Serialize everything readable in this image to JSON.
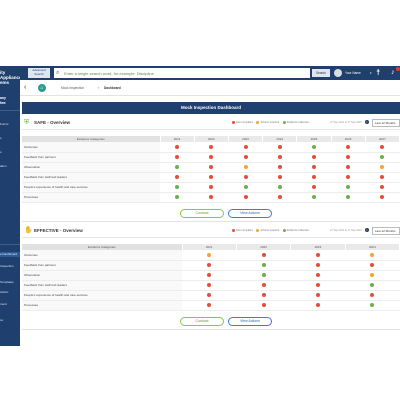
{
  "app": {
    "logo_text": "ity\nAppliance\nems",
    "user_short": "any\nfwe"
  },
  "sidebar": {
    "items": [
      {
        "label": "e Dashboard",
        "active": true
      },
      {
        "label": "Inspection",
        "active": false
      },
      {
        "label": "Templates",
        "active": false
      },
      {
        "label": "Action",
        "active": false
      },
      {
        "label": "ment",
        "active": false
      },
      {
        "label": "ce",
        "active": false
      }
    ],
    "upper_items": [
      {
        "label": "Forms"
      },
      {
        "label": "s"
      },
      {
        "label": "s"
      },
      {
        "label": "ation"
      }
    ]
  },
  "topbar": {
    "advanced_search": "Advanced Search",
    "search_placeholder": "Enter a single search word, for example: Discipline",
    "search_button": "Search",
    "user_name": "Your Name",
    "caret": "▾"
  },
  "breadcrumb": {
    "items": [
      "Mock Inspection",
      "Dashboard"
    ],
    "separator": "›"
  },
  "dashboard": {
    "title": "Mock Inspection Dashboard"
  },
  "colors": {
    "green": "#6ab04c",
    "amber": "#f5a623",
    "red": "#e74c3c",
    "navy": "#1f3f6e"
  },
  "legend": {
    "items": [
      {
        "label": "Non-compliant",
        "color": "#e74c3c"
      },
      {
        "label": "Actions required",
        "color": "#f5a623"
      },
      {
        "label": "Evidence collected",
        "color": "#6ab04c"
      }
    ]
  },
  "sections": [
    {
      "key": "safe",
      "title": "SAFE - Overview",
      "icon": "shield-icon",
      "reported": "27 Sep 2021 to 27 Sep 2022",
      "period": "Last 12 Months",
      "header_label": "Evidence Categories",
      "columns": [
        "2021",
        "2022",
        "2023",
        "2024",
        "2025",
        "2026",
        "2027"
      ],
      "rows": [
        {
          "label": "Outcomes",
          "marks": [
            "red",
            "red",
            "red",
            "red",
            "green",
            "red",
            "red"
          ]
        },
        {
          "label": "Feedback from partners",
          "marks": [
            "red",
            "red",
            "red",
            "red",
            "red",
            "red",
            "green"
          ]
        },
        {
          "label": "Observation",
          "marks": [
            "green",
            "red",
            "amber",
            "red",
            "red",
            "red",
            "amber"
          ]
        },
        {
          "label": "Feedback from staff and leaders",
          "marks": [
            "red",
            "red",
            "red",
            "red",
            "red",
            "red",
            "red"
          ]
        },
        {
          "label": "People's experience of health and care services",
          "marks": [
            "green",
            "red",
            "green",
            "green",
            "red",
            "green",
            "red"
          ]
        },
        {
          "label": "Processes",
          "marks": [
            "green",
            "red",
            "red",
            "red",
            "green",
            "green",
            "red"
          ]
        }
      ],
      "conduct_label": "Conduct",
      "view_label": "View Actions"
    },
    {
      "key": "effective",
      "title": "EFFECTIVE - Overview",
      "icon": "thumbs-up-icon",
      "reported": "27 Sep 2021 to 27 Sep 2022",
      "period": "Last 12 Months",
      "header_label": "Evidence Categories",
      "columns": [
        "2021",
        "2022",
        "2023",
        "2024"
      ],
      "rows": [
        {
          "label": "Outcomes",
          "marks": [
            "amber",
            "red",
            "red",
            "amber"
          ]
        },
        {
          "label": "Feedback from partners",
          "marks": [
            "red",
            "green",
            "red",
            "red"
          ]
        },
        {
          "label": "Observation",
          "marks": [
            "red",
            "green",
            "red",
            "amber"
          ]
        },
        {
          "label": "Feedback from staff and leaders",
          "marks": [
            "red",
            "red",
            "red",
            "green"
          ]
        },
        {
          "label": "People's experience of health and care services",
          "marks": [
            "red",
            "red",
            "red",
            "red"
          ]
        },
        {
          "label": "Processes",
          "marks": [
            "red",
            "red",
            "red",
            "green"
          ]
        }
      ],
      "conduct_label": "Conduct",
      "view_label": "View Actions"
    }
  ]
}
